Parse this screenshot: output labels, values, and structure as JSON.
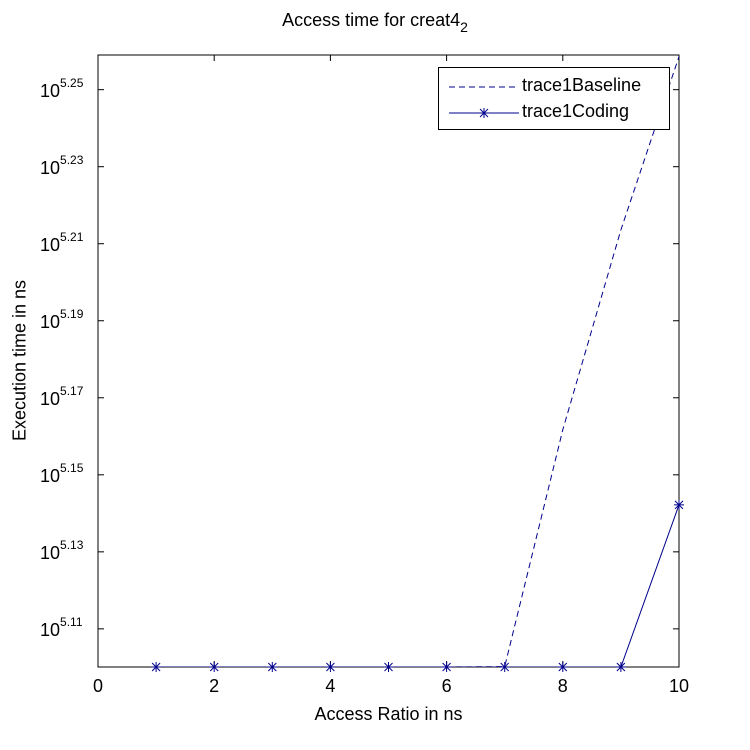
{
  "chart_data": {
    "type": "line",
    "title": "Access time for creat4",
    "title_subscript": "2",
    "xlabel": "Access Ratio in ns",
    "ylabel": "Execution time in ns",
    "yscale": "log",
    "xlim": [
      0,
      10
    ],
    "ylim_log10": [
      5.1001,
      5.259
    ],
    "x_ticks": [
      "0",
      "2",
      "4",
      "6",
      "8",
      "10"
    ],
    "y_ticks": [
      {
        "base": "10",
        "exp": "5.11",
        "value": 5.11
      },
      {
        "base": "10",
        "exp": "5.13",
        "value": 5.13
      },
      {
        "base": "10",
        "exp": "5.15",
        "value": 5.15
      },
      {
        "base": "10",
        "exp": "5.17",
        "value": 5.17
      },
      {
        "base": "10",
        "exp": "5.19",
        "value": 5.19
      },
      {
        "base": "10",
        "exp": "5.21",
        "value": 5.21
      },
      {
        "base": "10",
        "exp": "5.23",
        "value": 5.23
      },
      {
        "base": "10",
        "exp": "5.25",
        "value": 5.25
      }
    ],
    "x": [
      1,
      2,
      3,
      4,
      5,
      6,
      7,
      8,
      9,
      10
    ],
    "series": [
      {
        "name": "trace1Baseline",
        "style": "dashed",
        "marker": "none",
        "color": "#00008B",
        "log10_values": [
          5.1001,
          5.1001,
          5.1001,
          5.1001,
          5.1001,
          5.1001,
          5.1002,
          5.1617,
          5.2136,
          5.2586
        ]
      },
      {
        "name": "trace1Coding",
        "style": "solid",
        "marker": "asterisk",
        "color": "#00008B",
        "log10_values": [
          5.1001,
          5.1001,
          5.1001,
          5.1001,
          5.1001,
          5.1001,
          5.1001,
          5.1001,
          5.1001,
          5.1422
        ]
      }
    ],
    "legend_position": "northeast",
    "grid": false
  }
}
